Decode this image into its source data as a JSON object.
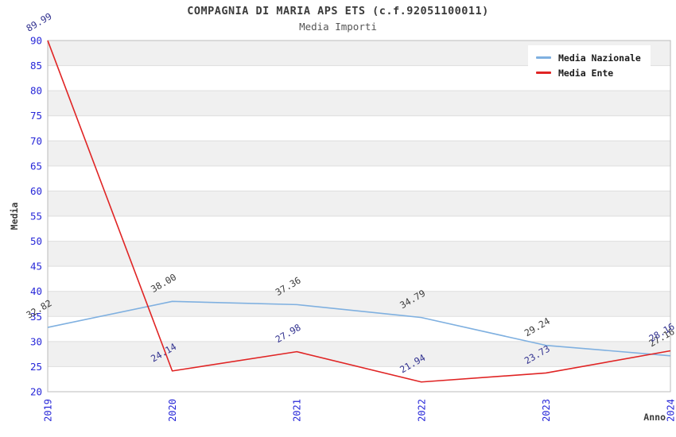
{
  "figure": {
    "title": "COMPAGNIA DI MARIA APS ETS (c.f.92051100011)",
    "subtitle": "Media Importi"
  },
  "chart_data": {
    "type": "line",
    "x": [
      "2019",
      "2020",
      "2021",
      "2022",
      "2023",
      "2024"
    ],
    "xlabel": "Anno",
    "ylabel": "Media",
    "ylim": [
      20,
      90
    ],
    "ytick_step": 5,
    "grid": "horizontal",
    "band_fill": "alternating",
    "legend_position": "top-right",
    "series": [
      {
        "name": "Media Nazionale",
        "color": "#7fb0e0",
        "label_color": "#3b3b3b",
        "values": [
          32.82,
          38.0,
          37.36,
          34.79,
          29.24,
          27.16
        ]
      },
      {
        "name": "Media Ente",
        "color": "#e02424",
        "label_color": "#31318f",
        "values": [
          89.99,
          24.14,
          27.98,
          21.94,
          23.73,
          28.16
        ]
      }
    ]
  },
  "colors": {
    "tick_label": "#2727d8",
    "band": "#f0f0f0",
    "gridline": "#dedede",
    "plot_border": "#bbbbbb"
  }
}
